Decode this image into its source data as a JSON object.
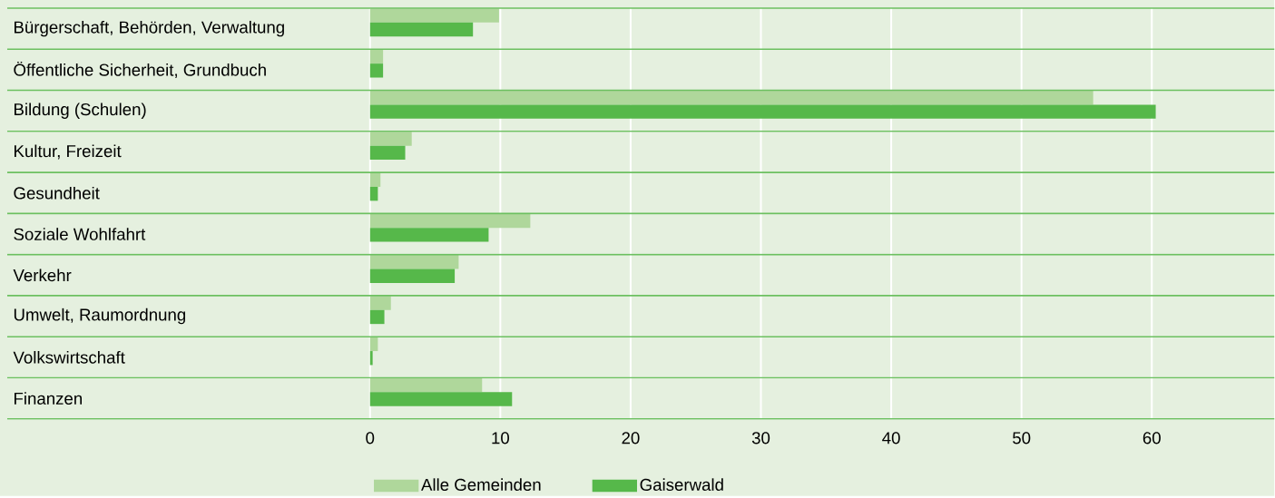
{
  "chart_data": {
    "type": "bar",
    "orientation": "horizontal",
    "categories": [
      "Bürgerschaft, Behörden, Verwaltung",
      "Öffentliche Sicherheit, Grundbuch",
      "Bildung (Schulen)",
      "Kultur, Freizeit",
      "Gesundheit",
      "Soziale Wohlfahrt",
      "Verkehr",
      "Umwelt, Raumordnung",
      "Volkswirtschaft",
      "Finanzen"
    ],
    "series": [
      {
        "name": "Alle Gemeinden",
        "color": "#afd79b",
        "values": [
          9.9,
          1.0,
          55.5,
          3.2,
          0.8,
          12.3,
          6.8,
          1.6,
          0.6,
          8.6
        ]
      },
      {
        "name": "Gaiserwald",
        "color": "#56b84a",
        "values": [
          7.9,
          1.0,
          60.3,
          2.7,
          0.6,
          9.1,
          6.5,
          1.1,
          0.2,
          10.9
        ]
      }
    ],
    "xlim": [
      0,
      69.4
    ],
    "xticks": [
      0,
      10,
      20,
      30,
      40,
      50,
      60
    ],
    "grid": "x",
    "legend": "bottom"
  }
}
